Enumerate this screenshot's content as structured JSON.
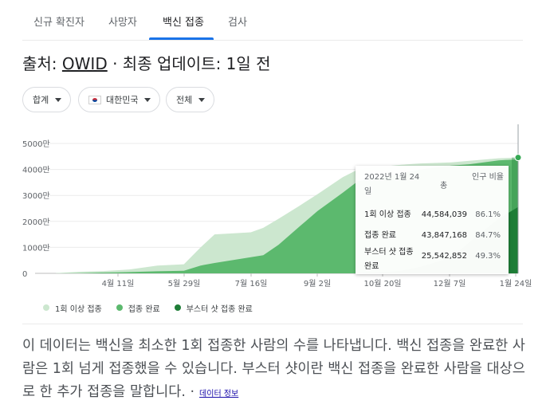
{
  "tabs": [
    {
      "label": "신규 확진자"
    },
    {
      "label": "사망자"
    },
    {
      "label": "백신 접종"
    },
    {
      "label": "검사"
    }
  ],
  "source": {
    "prefix": "출처: ",
    "name": "OWID",
    "suffix": " · 최종 업데이트: 1일 전"
  },
  "filters": {
    "aggregate": "합계",
    "country": "대한민국",
    "scope": "전체"
  },
  "tooltip": {
    "date": "2022년 1월 24일",
    "col_total": "총",
    "col_pct": "인구 비율",
    "rows": [
      {
        "label": "1회 이상 접종",
        "value": "44,584,039",
        "pct": "86.1%"
      },
      {
        "label": "접종 완료",
        "value": "43,847,168",
        "pct": "84.7%"
      },
      {
        "label": "부스터 샷 접종 완료",
        "value": "25,542,852",
        "pct": "49.3%"
      }
    ]
  },
  "legend": [
    "1회 이상 접종",
    "접종 완료",
    "부스터 샷 접종 완료"
  ],
  "description": {
    "text": "이 데이터는 백신을 최소한 1회 접종한 사람의 수를 나타냅니다. 백신 접종을 완료한 사람은 1회 넘게 접종했을 수 있습니다. 부스터 샷이란 백신 접종을 완료한 사람을 대상으로 한 추가 접종을 말합니다. ·",
    "link": "데이터 정보"
  },
  "colors": {
    "first_dose": "#cce7cf",
    "fully": "#5cb96e",
    "booster": "#1e7d37",
    "accent": "#1a73e8"
  },
  "chart_data": {
    "type": "area",
    "x": [
      "2021-02-26",
      "2021-03-15",
      "2021-04-01",
      "2021-04-11",
      "2021-04-20",
      "2021-05-10",
      "2021-05-29",
      "2021-06-10",
      "2021-06-20",
      "2021-07-16",
      "2021-07-25",
      "2021-08-05",
      "2021-08-20",
      "2021-09-02",
      "2021-09-20",
      "2021-10-01",
      "2021-10-20",
      "2021-11-01",
      "2021-11-15",
      "2021-12-07",
      "2021-12-20",
      "2022-01-10",
      "2022-01-24"
    ],
    "xlim": [
      "2021-02-26",
      "2022-01-24"
    ],
    "series": [
      {
        "name": "1회 이상 접종",
        "values": [
          0.05,
          0.6,
          0.9,
          1.2,
          1.5,
          3.0,
          3.5,
          10.0,
          15.0,
          15.8,
          17.5,
          21.0,
          26.0,
          30.5,
          37.0,
          40.0,
          41.2,
          41.8,
          42.3,
          42.7,
          43.3,
          44.3,
          44.58
        ]
      },
      {
        "name": "접종 완료",
        "values": [
          0,
          0.1,
          0.3,
          0.4,
          0.5,
          0.8,
          1.0,
          3.0,
          4.0,
          6.2,
          7.0,
          11.0,
          18.0,
          24.0,
          31.0,
          35.5,
          37.0,
          38.5,
          40.0,
          41.5,
          42.0,
          43.5,
          43.85
        ]
      },
      {
        "name": "부스터 샷 접종 완료",
        "values": [
          0,
          0,
          0,
          0,
          0,
          0,
          0,
          0,
          0,
          0,
          0,
          0,
          0,
          0,
          0,
          0,
          0.5,
          1.0,
          2.5,
          6.0,
          12.0,
          21.0,
          25.54
        ]
      }
    ],
    "x_ticks": [
      "4월 11일",
      "5월 29일",
      "7월 16일",
      "9월 2일",
      "10월 20일",
      "12월 7일",
      "1월 24일"
    ],
    "y_ticks": [
      "0",
      "1000만",
      "2000만",
      "3000만",
      "4000만",
      "5000만"
    ],
    "ylim": [
      0,
      50
    ],
    "grid": true,
    "legend_position": "bottom"
  }
}
